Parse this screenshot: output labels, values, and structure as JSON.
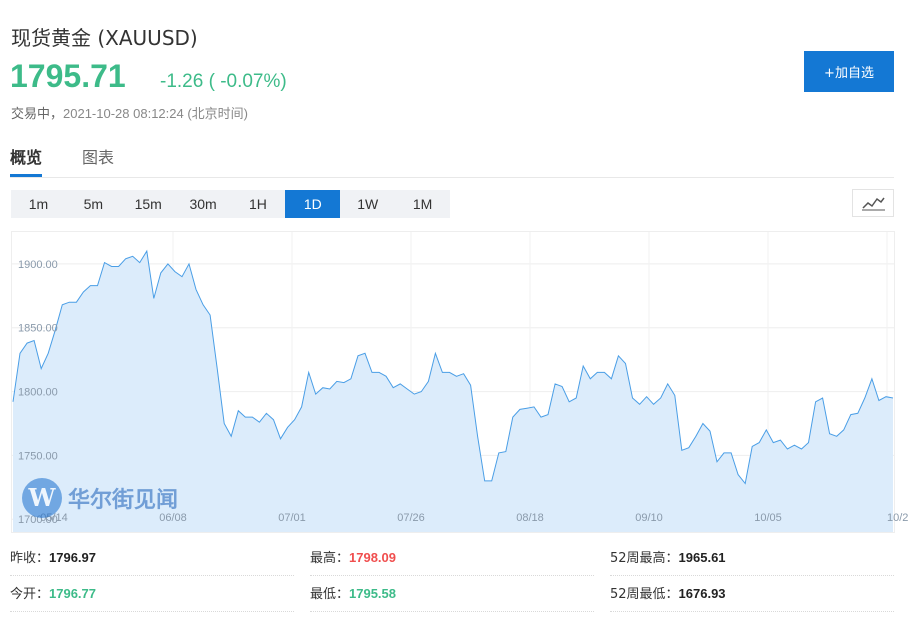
{
  "header": {
    "title": "现货黄金 (XAUUSD)",
    "price": "1795.71",
    "change": "-1.26 ( -0.07%)",
    "status_prefix": "交易中，",
    "timestamp": "2021-10-28 08:12:24 (北京时间)",
    "add_button": "+加自选"
  },
  "tabs": [
    {
      "label": "概览",
      "active": true
    },
    {
      "label": "图表",
      "active": false
    }
  ],
  "periods": [
    "1m",
    "5m",
    "15m",
    "30m",
    "1H",
    "1D",
    "1W",
    "1M"
  ],
  "active_period": "1D",
  "watermark": {
    "logo": "W",
    "text": "华尔街见闻"
  },
  "chart_data": {
    "type": "area",
    "ylim": [
      1690,
      1925
    ],
    "y_ticks": [
      "1900.00",
      "1850.00",
      "1800.00",
      "1750.00",
      "1700.00"
    ],
    "x_ticks": [
      "05/14",
      "06/08",
      "07/01",
      "07/26",
      "08/18",
      "09/10",
      "10/05",
      "10/2"
    ],
    "values": [
      1792,
      1830,
      1838,
      1840,
      1818,
      1830,
      1848,
      1868,
      1870,
      1870,
      1878,
      1883,
      1883,
      1901,
      1898,
      1898,
      1904,
      1906,
      1901,
      1910,
      1873,
      1893,
      1900,
      1894,
      1890,
      1900,
      1880,
      1868,
      1860,
      1818,
      1775,
      1765,
      1785,
      1780,
      1780,
      1776,
      1783,
      1778,
      1763,
      1772,
      1778,
      1788,
      1815,
      1798,
      1803,
      1802,
      1808,
      1807,
      1810,
      1828,
      1830,
      1815,
      1815,
      1812,
      1803,
      1806,
      1802,
      1798,
      1800,
      1808,
      1830,
      1815,
      1815,
      1812,
      1814,
      1805,
      1765,
      1730,
      1730,
      1752,
      1753,
      1780,
      1786,
      1787,
      1788,
      1780,
      1782,
      1806,
      1804,
      1792,
      1795,
      1820,
      1810,
      1815,
      1815,
      1810,
      1828,
      1822,
      1795,
      1790,
      1796,
      1790,
      1795,
      1806,
      1797,
      1754,
      1756,
      1765,
      1775,
      1769,
      1745,
      1752,
      1752,
      1735,
      1728,
      1757,
      1760,
      1770,
      1760,
      1762,
      1755,
      1758,
      1755,
      1760,
      1792,
      1795,
      1767,
      1765,
      1770,
      1782,
      1783,
      1795,
      1810,
      1793,
      1796,
      1795
    ]
  },
  "stats": {
    "prev_close": {
      "label": "昨收：",
      "value": "1796.97"
    },
    "high": {
      "label": "最高：",
      "value": "1798.09"
    },
    "week52_high": {
      "label": "52周最高：",
      "value": "1965.61"
    },
    "open": {
      "label": "今开：",
      "value": "1796.77"
    },
    "low": {
      "label": "最低：",
      "value": "1795.58"
    },
    "week52_low": {
      "label": "52周最低：",
      "value": "1676.93"
    }
  },
  "colors": {
    "up": "#f04e4e",
    "down": "#3dbb89",
    "accent": "#1478d4",
    "line": "#4a9ee6",
    "fill": "#dcecfb"
  }
}
